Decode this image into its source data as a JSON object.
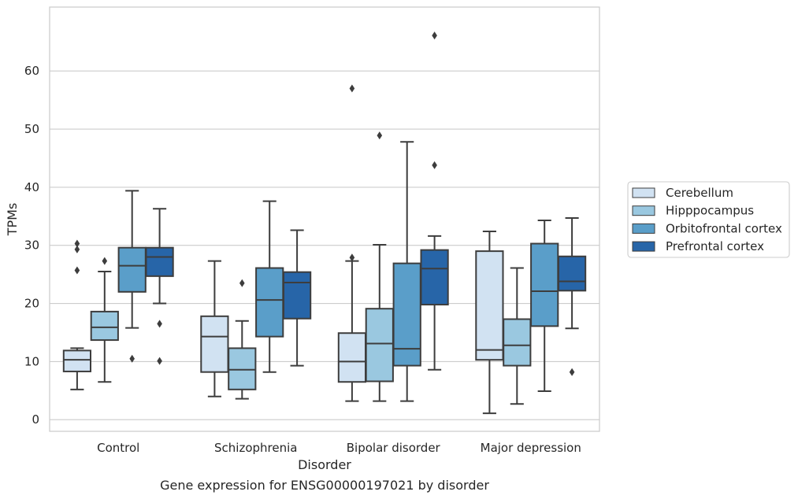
{
  "chart_data": {
    "type": "box",
    "title": "",
    "caption": "Gene expression for ENSG00000197021 by disorder",
    "xlabel": "Disorder",
    "ylabel": "TPMs",
    "ylim": [
      -2,
      71
    ],
    "yticks": [
      0,
      10,
      20,
      30,
      40,
      50,
      60
    ],
    "grid": "horizontal",
    "legend_position": "right",
    "categories": [
      "Control",
      "Schizophrenia",
      "Bipolar disorder",
      "Major depression"
    ],
    "series": [
      {
        "name": "Cerebellum",
        "color": "#d1e2f2",
        "boxes": [
          {
            "whisker_low": 5.2,
            "q1": 8.3,
            "median": 10.3,
            "q3": 11.9,
            "whisker_high": 12.3,
            "outliers": [
              25.7,
              29.3,
              30.3
            ]
          },
          {
            "whisker_low": 4.0,
            "q1": 8.2,
            "median": 14.3,
            "q3": 17.8,
            "whisker_high": 27.3,
            "outliers": []
          },
          {
            "whisker_low": 3.2,
            "q1": 6.5,
            "median": 10.0,
            "q3": 14.9,
            "whisker_high": 27.3,
            "outliers": [
              27.9,
              57.0
            ]
          },
          {
            "whisker_low": 1.1,
            "q1": 10.3,
            "median": 12.0,
            "q3": 29.0,
            "whisker_high": 32.4,
            "outliers": []
          }
        ]
      },
      {
        "name": "Hipppocampus",
        "color": "#9ac8e0",
        "boxes": [
          {
            "whisker_low": 6.5,
            "q1": 13.7,
            "median": 15.9,
            "q3": 18.6,
            "whisker_high": 25.5,
            "outliers": [
              27.3
            ]
          },
          {
            "whisker_low": 3.6,
            "q1": 5.2,
            "median": 8.6,
            "q3": 12.3,
            "whisker_high": 17.0,
            "outliers": [
              23.5
            ]
          },
          {
            "whisker_low": 3.2,
            "q1": 6.6,
            "median": 13.1,
            "q3": 19.1,
            "whisker_high": 30.1,
            "outliers": [
              48.9
            ]
          },
          {
            "whisker_low": 2.7,
            "q1": 9.3,
            "median": 12.8,
            "q3": 17.3,
            "whisker_high": 26.1,
            "outliers": []
          }
        ]
      },
      {
        "name": "Orbitofrontal cortex",
        "color": "#5a9ec9",
        "boxes": [
          {
            "whisker_low": 15.8,
            "q1": 22.0,
            "median": 26.5,
            "q3": 29.6,
            "whisker_high": 39.4,
            "outliers": [
              10.5
            ]
          },
          {
            "whisker_low": 8.2,
            "q1": 14.3,
            "median": 20.6,
            "q3": 26.1,
            "whisker_high": 37.6,
            "outliers": []
          },
          {
            "whisker_low": 3.2,
            "q1": 9.3,
            "median": 12.2,
            "q3": 26.9,
            "whisker_high": 47.8,
            "outliers": []
          },
          {
            "whisker_low": 4.9,
            "q1": 16.1,
            "median": 22.1,
            "q3": 30.3,
            "whisker_high": 34.3,
            "outliers": []
          }
        ]
      },
      {
        "name": "Prefrontal cortex",
        "color": "#2765a8",
        "boxes": [
          {
            "whisker_low": 20.0,
            "q1": 24.7,
            "median": 28.0,
            "q3": 29.6,
            "whisker_high": 36.3,
            "outliers": [
              16.5,
              10.1
            ]
          },
          {
            "whisker_low": 9.3,
            "q1": 17.4,
            "median": 23.6,
            "q3": 25.4,
            "whisker_high": 32.6,
            "outliers": []
          },
          {
            "whisker_low": 8.6,
            "q1": 19.8,
            "median": 26.0,
            "q3": 29.2,
            "whisker_high": 31.6,
            "outliers": [
              43.8,
              66.1
            ]
          },
          {
            "whisker_low": 15.7,
            "q1": 22.2,
            "median": 23.8,
            "q3": 28.1,
            "whisker_high": 34.7,
            "outliers": [
              8.2
            ]
          }
        ]
      }
    ]
  }
}
